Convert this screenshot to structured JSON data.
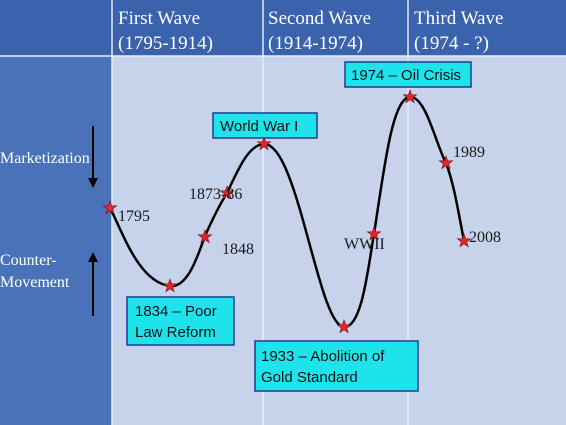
{
  "colors": {
    "header_bg": "#3a62ad",
    "sidebar_bg": "#4a72b8",
    "plot_bg": "#c6d3ea",
    "divider": "#e6ecf7",
    "curve": "#000000",
    "star": "#e0262b",
    "callout_bg": "#1fe3ea",
    "callout_border": "#1a3e8f"
  },
  "headers": [
    {
      "title": "First Wave",
      "range": "(1795-1914)"
    },
    {
      "title": "Second Wave",
      "range": "(1914-1974)"
    },
    {
      "title": "Third Wave",
      "range": "(1974 - ?)"
    }
  ],
  "sidebar": {
    "top_label": "Marketization",
    "bottom_label_line1": "Counter-",
    "bottom_label_line2": "Movement",
    "top_arrow_icon": "arrow-down-icon",
    "bottom_arrow_icon": "arrow-up-icon"
  },
  "points": {
    "p1795": {
      "label": "1795"
    },
    "p1834": {
      "label": ""
    },
    "p1848": {
      "label": "1848"
    },
    "p1873": {
      "label": "1873-86"
    },
    "p1914": {
      "label": ""
    },
    "p1933": {
      "label": ""
    },
    "pWWII": {
      "label": "WWII"
    },
    "p1974": {
      "label": ""
    },
    "p1989": {
      "label": "1989"
    },
    "p2008": {
      "label": "2008"
    }
  },
  "callouts": {
    "wwi": {
      "line1": "World War I",
      "line2": ""
    },
    "oil": {
      "line1": "1974 – Oil Crisis",
      "line2": ""
    },
    "poor_law": {
      "line1": "1834 – Poor",
      "line2": "Law Reform"
    },
    "gold": {
      "line1": "1933 – Abolition of",
      "line2": "Gold Standard"
    }
  }
}
